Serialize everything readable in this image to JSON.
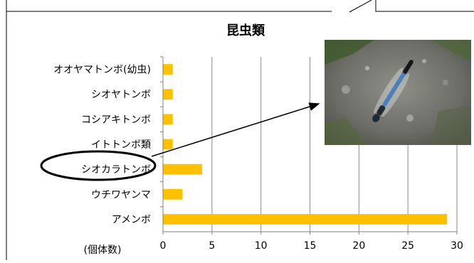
{
  "chart_data": {
    "type": "bar",
    "orientation": "horizontal",
    "title": "昆虫類",
    "categories": [
      "オオヤマトンボ(幼虫)",
      "シオヤトンボ",
      "コシアキトンボ",
      "イトトンボ類",
      "シオカラトンボ",
      "ウチワヤンマ",
      "アメンボ"
    ],
    "values": [
      1,
      1,
      1,
      1,
      4,
      2,
      29
    ],
    "xlabel": "(個体数)",
    "xlim": [
      0,
      30
    ],
    "xticks": [
      "0",
      "5",
      "10",
      "15",
      "20",
      "25",
      "30"
    ],
    "grid": "vertical",
    "bar_color": "#FFC000",
    "highlighted_category": "シオカラトンボ"
  },
  "photo": {
    "subject": "blue dragonfly on gravel",
    "icon": "dragonfly-photo"
  }
}
